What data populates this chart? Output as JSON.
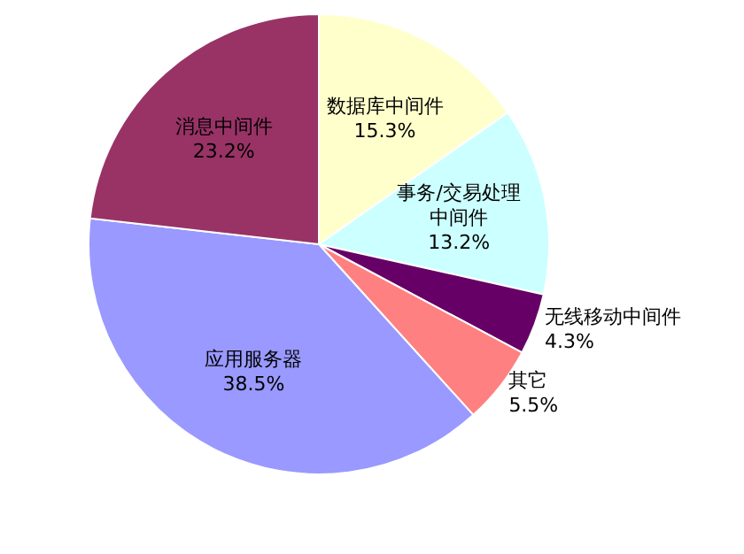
{
  "chart_data": {
    "type": "pie",
    "categories": [
      "数据库中间件",
      "事务/交易处理中间件",
      "无线移动中间件",
      "其它",
      "应用服务器",
      "消息中间件"
    ],
    "values": [
      15.3,
      13.2,
      4.3,
      5.5,
      38.5,
      23.2
    ],
    "value_labels": [
      "15.3%",
      "13.2%",
      "4.3%",
      "5.5%",
      "38.5%",
      "23.2%"
    ],
    "colors": [
      "#ffffcc",
      "#ccffff",
      "#660066",
      "#ff8080",
      "#9999ff",
      "#993366"
    ]
  }
}
